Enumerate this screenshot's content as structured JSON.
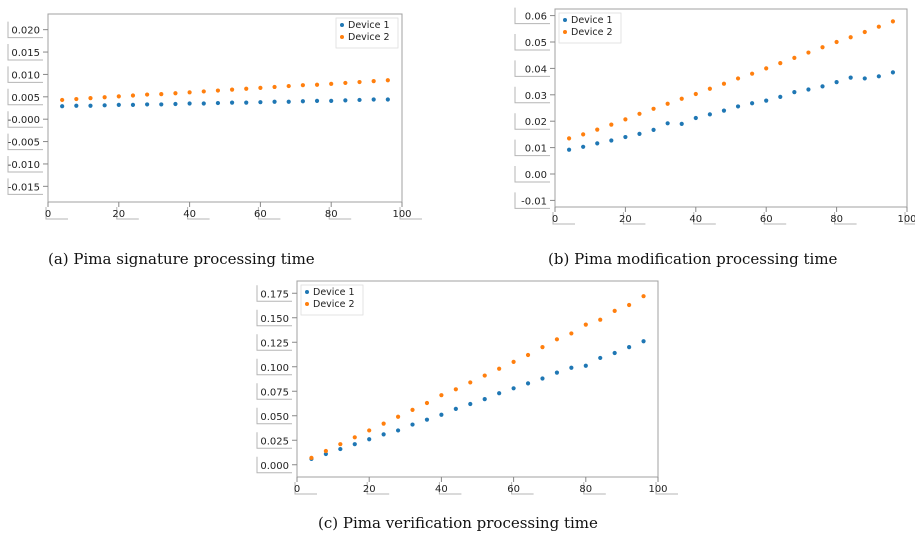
{
  "chart_data": [
    {
      "type": "scatter",
      "caption": "(a) Pima signature processing time",
      "xlim": [
        0,
        100
      ],
      "ylim": [
        -0.0185,
        0.0235
      ],
      "xticks": [
        "0",
        "20",
        "40",
        "60",
        "80",
        "100"
      ],
      "yticks": [
        "-0.015",
        "-0.010",
        "-0.005",
        "-0.000",
        "0.005",
        "0.010",
        "0.015",
        "0.020"
      ],
      "legend_position": "top-right",
      "x": [
        4,
        8,
        12,
        16,
        20,
        24,
        28,
        32,
        36,
        40,
        44,
        48,
        52,
        56,
        60,
        64,
        68,
        72,
        76,
        80,
        84,
        88,
        92,
        96
      ],
      "series": [
        {
          "name": "Device 1",
          "color": "#1f77b4",
          "values": [
            0.0029,
            0.003,
            0.003,
            0.0031,
            0.0032,
            0.0032,
            0.0033,
            0.0033,
            0.0034,
            0.0035,
            0.0035,
            0.0036,
            0.0037,
            0.0037,
            0.0038,
            0.0039,
            0.0039,
            0.004,
            0.0041,
            0.0041,
            0.0042,
            0.0043,
            0.0044,
            0.0044
          ]
        },
        {
          "name": "Device 2",
          "color": "#ff7f0e",
          "values": [
            0.0043,
            0.0045,
            0.0047,
            0.0049,
            0.0051,
            0.0053,
            0.0055,
            0.0056,
            0.0058,
            0.006,
            0.0062,
            0.0064,
            0.0066,
            0.0068,
            0.007,
            0.0072,
            0.0074,
            0.0076,
            0.0077,
            0.0079,
            0.0081,
            0.0083,
            0.0085,
            0.0087
          ]
        }
      ]
    },
    {
      "type": "scatter",
      "caption": "(b) Pima modification processing time",
      "xlim": [
        0,
        100
      ],
      "ylim": [
        -0.0125,
        0.0625
      ],
      "xticks": [
        "0",
        "20",
        "40",
        "60",
        "80",
        "100"
      ],
      "yticks": [
        "-0.01",
        "0.00",
        "0.01",
        "0.02",
        "0.03",
        "0.04",
        "0.05",
        "0.06"
      ],
      "legend_position": "top-left",
      "x": [
        4,
        8,
        12,
        16,
        20,
        24,
        28,
        32,
        36,
        40,
        44,
        48,
        52,
        56,
        60,
        64,
        68,
        72,
        76,
        80,
        84,
        88,
        92,
        96
      ],
      "series": [
        {
          "name": "Device 1",
          "color": "#1f77b4",
          "values": [
            0.0092,
            0.0103,
            0.0116,
            0.0127,
            0.014,
            0.0152,
            0.0167,
            0.0192,
            0.019,
            0.0212,
            0.0226,
            0.024,
            0.0256,
            0.0268,
            0.0278,
            0.0292,
            0.031,
            0.032,
            0.0332,
            0.0348,
            0.0365,
            0.0362,
            0.037,
            0.0385
          ]
        },
        {
          "name": "Device 2",
          "color": "#ff7f0e",
          "values": [
            0.0135,
            0.015,
            0.0168,
            0.0187,
            0.0207,
            0.0228,
            0.0247,
            0.0266,
            0.0285,
            0.0303,
            0.0323,
            0.0342,
            0.0362,
            0.038,
            0.04,
            0.042,
            0.044,
            0.046,
            0.048,
            0.05,
            0.0518,
            0.0538,
            0.0558,
            0.0578
          ]
        }
      ]
    },
    {
      "type": "scatter",
      "caption": "(c) Pima verification processing time",
      "xlim": [
        0,
        100
      ],
      "ylim": [
        -0.0125,
        0.1875
      ],
      "xticks": [
        "0",
        "20",
        "40",
        "60",
        "80",
        "100"
      ],
      "yticks": [
        "0.000",
        "0.025",
        "0.050",
        "0.075",
        "0.100",
        "0.125",
        "0.150",
        "0.175"
      ],
      "legend_position": "top-left",
      "x": [
        4,
        8,
        12,
        16,
        20,
        24,
        28,
        32,
        36,
        40,
        44,
        48,
        52,
        56,
        60,
        64,
        68,
        72,
        76,
        80,
        84,
        88,
        92,
        96
      ],
      "series": [
        {
          "name": "Device 1",
          "color": "#1f77b4",
          "values": [
            0.006,
            0.011,
            0.016,
            0.021,
            0.026,
            0.031,
            0.035,
            0.041,
            0.046,
            0.051,
            0.057,
            0.062,
            0.067,
            0.073,
            0.078,
            0.083,
            0.088,
            0.094,
            0.099,
            0.101,
            0.109,
            0.114,
            0.12,
            0.126
          ]
        },
        {
          "name": "Device 2",
          "color": "#ff7f0e",
          "values": [
            0.007,
            0.014,
            0.021,
            0.028,
            0.035,
            0.042,
            0.049,
            0.056,
            0.063,
            0.071,
            0.077,
            0.084,
            0.091,
            0.098,
            0.105,
            0.112,
            0.12,
            0.128,
            0.134,
            0.143,
            0.148,
            0.157,
            0.163,
            0.172
          ]
        }
      ]
    }
  ]
}
